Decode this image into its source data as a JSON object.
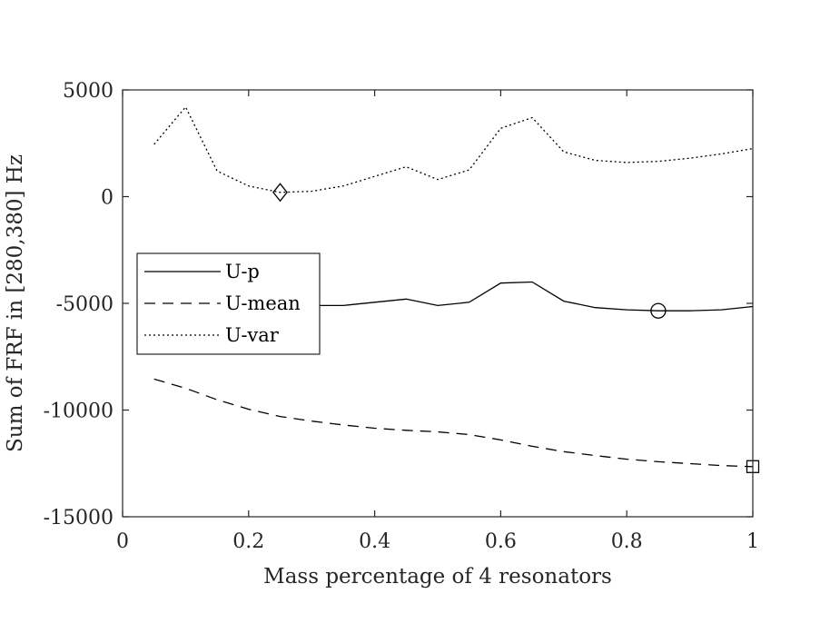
{
  "chart_data": {
    "type": "line",
    "title": "",
    "xlabel": "Mass percentage of 4 resonators",
    "ylabel": "Sum of FRF in [280,380] Hz",
    "xlim": [
      0,
      1
    ],
    "ylim": [
      -15000,
      5000
    ],
    "xticks": [
      0,
      0.2,
      0.4,
      0.6,
      0.8,
      1
    ],
    "xtick_labels": [
      "0",
      "0.2",
      "0.4",
      "0.6",
      "0.8",
      "1"
    ],
    "yticks": [
      5000,
      0,
      -5000,
      -10000,
      -15000
    ],
    "ytick_labels": [
      "5000",
      "0",
      "-5000",
      "-10000",
      "-15000"
    ],
    "grid": false,
    "legend_position": "left",
    "series": [
      {
        "name": "U-p",
        "line_style": "solid",
        "color": "#000000",
        "x": [
          0.05,
          0.1,
          0.15,
          0.2,
          0.25,
          0.3,
          0.35,
          0.4,
          0.45,
          0.5,
          0.55,
          0.6,
          0.65,
          0.7,
          0.75,
          0.8,
          0.85,
          0.9,
          0.95,
          1.0
        ],
        "y": [
          -4800,
          -4100,
          -4700,
          -5000,
          -5050,
          -5100,
          -5100,
          -4950,
          -4800,
          -5100,
          -4950,
          -4050,
          -4000,
          -4900,
          -5200,
          -5300,
          -5350,
          -5350,
          -5300,
          -5150
        ],
        "marker": {
          "shape": "circle",
          "x": 0.85,
          "y": -5350
        }
      },
      {
        "name": "U-mean",
        "line_style": "dashed",
        "color": "#000000",
        "x": [
          0.05,
          0.1,
          0.15,
          0.2,
          0.25,
          0.3,
          0.35,
          0.4,
          0.45,
          0.5,
          0.55,
          0.6,
          0.65,
          0.7,
          0.75,
          0.8,
          0.85,
          0.9,
          0.95,
          1.0
        ],
        "y": [
          -8550,
          -8980,
          -9520,
          -9960,
          -10300,
          -10520,
          -10700,
          -10850,
          -10950,
          -11020,
          -11150,
          -11400,
          -11700,
          -11950,
          -12130,
          -12300,
          -12420,
          -12510,
          -12600,
          -12650
        ],
        "marker": {
          "shape": "square",
          "x": 1.0,
          "y": -12650
        }
      },
      {
        "name": "U-var",
        "line_style": "dotted",
        "color": "#000000",
        "x": [
          0.05,
          0.1,
          0.15,
          0.2,
          0.25,
          0.3,
          0.35,
          0.4,
          0.45,
          0.5,
          0.55,
          0.6,
          0.65,
          0.7,
          0.75,
          0.8,
          0.85,
          0.9,
          0.95,
          1.0
        ],
        "y": [
          2450,
          4200,
          1200,
          500,
          200,
          250,
          500,
          950,
          1400,
          800,
          1250,
          3200,
          3700,
          2100,
          1700,
          1600,
          1650,
          1800,
          2000,
          2250
        ],
        "marker": {
          "shape": "diamond",
          "x": 0.25,
          "y": 200
        }
      }
    ]
  }
}
